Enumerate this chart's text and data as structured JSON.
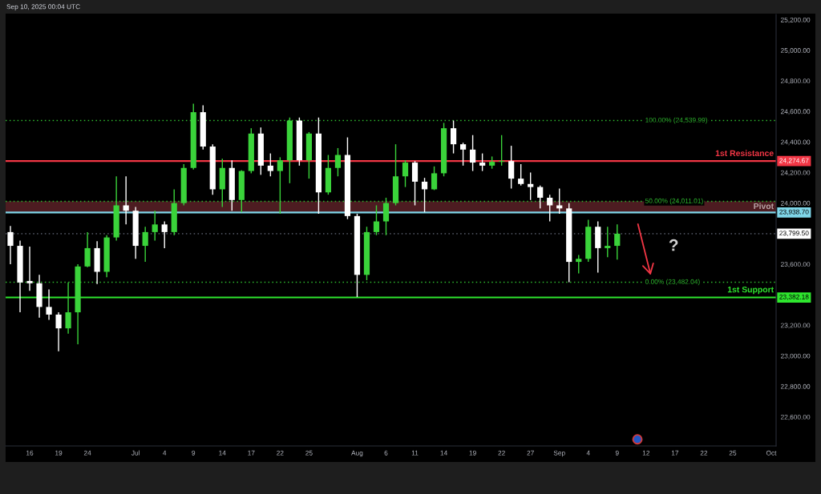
{
  "chart_data": {
    "type": "candlestick",
    "title": "Sep 10, 2025 00:04 UTC",
    "categories": [
      null,
      null,
      "16",
      null,
      null,
      "19",
      null,
      null,
      "24",
      null,
      null,
      null,
      null,
      "Jul",
      null,
      null,
      "4",
      null,
      null,
      "9",
      null,
      null,
      "14",
      null,
      null,
      "17",
      null,
      null,
      "22",
      null,
      null,
      "25",
      null,
      null,
      null,
      null,
      "Aug",
      null,
      null,
      "6",
      null,
      null,
      "11",
      null,
      null,
      "14",
      null,
      null,
      "19",
      null,
      null,
      "22",
      null,
      null,
      "27",
      null,
      null,
      "Sep",
      null,
      null,
      "4",
      null,
      null,
      "9",
      null,
      null,
      "12",
      null,
      null,
      "17",
      null,
      null,
      "22",
      null,
      null,
      "25",
      null,
      null,
      null,
      "Oct"
    ],
    "ohlc": [
      [
        23810,
        23850,
        23600,
        23720
      ],
      [
        23720,
        23755,
        23285,
        23480
      ],
      [
        23490,
        23715,
        23425,
        23475
      ],
      [
        23475,
        23530,
        23250,
        23320
      ],
      [
        23320,
        23435,
        23235,
        23270
      ],
      [
        23270,
        23285,
        23030,
        23180
      ],
      [
        23180,
        23480,
        23145,
        23285
      ],
      [
        23285,
        23600,
        23075,
        23585
      ],
      [
        23585,
        23810,
        23580,
        23705
      ],
      [
        23705,
        23750,
        23470,
        23550
      ],
      [
        23550,
        23790,
        23515,
        23775
      ],
      [
        23775,
        24175,
        23755,
        23985
      ],
      [
        23985,
        24175,
        23860,
        23950
      ],
      [
        23950,
        23975,
        23635,
        23720
      ],
      [
        23720,
        23845,
        23615,
        23810
      ],
      [
        23810,
        23950,
        23755,
        23860
      ],
      [
        23860,
        23880,
        23705,
        23810
      ],
      [
        23810,
        24090,
        23790,
        24000
      ],
      [
        24000,
        24255,
        23985,
        24230
      ],
      [
        24230,
        24650,
        24220,
        24595
      ],
      [
        24595,
        24640,
        24350,
        24370
      ],
      [
        24370,
        24385,
        24055,
        24090
      ],
      [
        24090,
        24290,
        23975,
        24230
      ],
      [
        24230,
        24280,
        23950,
        24020
      ],
      [
        24020,
        24215,
        23940,
        24210
      ],
      [
        24210,
        24490,
        24195,
        24455
      ],
      [
        24455,
        24495,
        24185,
        24245
      ],
      [
        24245,
        24325,
        24175,
        24210
      ],
      [
        24210,
        24300,
        23930,
        24280
      ],
      [
        24280,
        24560,
        24130,
        24540
      ],
      [
        24540,
        24560,
        24245,
        24280
      ],
      [
        24280,
        24465,
        24160,
        24455
      ],
      [
        24455,
        24560,
        23930,
        24070
      ],
      [
        24070,
        24315,
        24055,
        24230
      ],
      [
        24230,
        24360,
        24175,
        24315
      ],
      [
        24315,
        24430,
        23895,
        23915
      ],
      [
        23915,
        23930,
        23385,
        23530
      ],
      [
        23530,
        23845,
        23495,
        23810
      ],
      [
        23810,
        23985,
        23790,
        23880
      ],
      [
        23880,
        24035,
        23790,
        24000
      ],
      [
        24000,
        24385,
        23985,
        24175
      ],
      [
        24175,
        24280,
        24105,
        24265
      ],
      [
        24265,
        24275,
        23985,
        24140
      ],
      [
        24140,
        24165,
        23940,
        24090
      ],
      [
        24090,
        24240,
        24085,
        24195
      ],
      [
        24195,
        24525,
        24175,
        24490
      ],
      [
        24490,
        24540,
        24325,
        24385
      ],
      [
        24385,
        24395,
        24245,
        24350
      ],
      [
        24350,
        24445,
        24210,
        24265
      ],
      [
        24265,
        24325,
        24210,
        24245
      ],
      [
        24245,
        24305,
        24225,
        24270
      ],
      [
        24270,
        24445,
        24245,
        24275
      ],
      [
        24275,
        24375,
        24095,
        24160
      ],
      [
        24160,
        24255,
        24115,
        24125
      ],
      [
        24125,
        24200,
        24020,
        24105
      ],
      [
        24105,
        24115,
        23965,
        24035
      ],
      [
        24035,
        24055,
        23880,
        23985
      ],
      [
        23985,
        24095,
        23930,
        23965
      ],
      [
        23965,
        24000,
        23482,
        23615
      ],
      [
        23615,
        23660,
        23540,
        23635
      ],
      [
        23635,
        23890,
        23615,
        23845
      ],
      [
        23845,
        23880,
        23545,
        23705
      ],
      [
        23705,
        23845,
        23645,
        23720
      ],
      [
        23720,
        23860,
        23630,
        23799.5
      ],
      null,
      null,
      null,
      null,
      null,
      null,
      null,
      null,
      null,
      null,
      null,
      null,
      null,
      null,
      null,
      null
    ],
    "colors": [
      "#ffffff",
      "#ffffff",
      "#ffffff",
      "#ffffff",
      "#ffffff",
      "#ffffff",
      "#3ad33a",
      "#3ad33a",
      "#3ad33a",
      "#ffffff",
      "#3ad33a",
      "#3ad33a",
      "#ffffff",
      "#ffffff",
      "#3ad33a",
      "#3ad33a",
      "#ffffff",
      "#3ad33a",
      "#3ad33a",
      "#3ad33a",
      "#ffffff",
      "#ffffff",
      "#3ad33a",
      "#ffffff",
      "#3ad33a",
      "#3ad33a",
      "#ffffff",
      "#ffffff",
      "#3ad33a",
      "#3ad33a",
      "#ffffff",
      "#3ad33a",
      "#ffffff",
      "#3ad33a",
      "#3ad33a",
      "#ffffff",
      "#ffffff",
      "#3ad33a",
      "#3ad33a",
      "#3ad33a",
      "#3ad33a",
      "#3ad33a",
      "#ffffff",
      "#ffffff",
      "#3ad33a",
      "#3ad33a",
      "#ffffff",
      "#ffffff",
      "#ffffff",
      "#ffffff",
      "#3ad33a",
      "#3ad33a",
      "#ffffff",
      "#ffffff",
      "#ffffff",
      "#ffffff",
      "#ffffff",
      "#ffffff",
      "#ffffff",
      "#3ad33a",
      "#3ad33a",
      "#ffffff",
      "#3ad33a",
      "#3ad33a",
      null,
      null,
      null,
      null,
      null,
      null,
      null,
      null,
      null,
      null,
      null,
      null,
      null,
      null,
      null,
      null
    ],
    "ylim": [
      22410,
      25235
    ],
    "yticks": [
      {
        "value": 22600,
        "label": "22,600.00"
      },
      {
        "value": 22800,
        "label": "22,800.00"
      },
      {
        "value": 23000,
        "label": "23,000.00"
      },
      {
        "value": 23200,
        "label": "23,200.00"
      },
      {
        "value": 23600,
        "label": "23,600.00"
      },
      {
        "value": 24000,
        "label": "24,000.00"
      },
      {
        "value": 24200,
        "label": "24,200.00"
      },
      {
        "value": 24400,
        "label": "24,400.00"
      },
      {
        "value": 24600,
        "label": "24,600.00"
      },
      {
        "value": 24800,
        "label": "24,800.00"
      },
      {
        "value": 25000,
        "label": "25,000.00"
      },
      {
        "value": 25200,
        "label": "25,200.00"
      }
    ],
    "ref_lines": [
      {
        "axis": "y",
        "value": 24274.67,
        "label": "1st Resistance",
        "color": "#f23645",
        "line_style": "solid"
      },
      {
        "axis": "y",
        "value": 23938.7,
        "color": "#7fd6e8",
        "line_style": "solid"
      },
      {
        "axis": "y",
        "value": 23382.18,
        "label": "1st Support",
        "color": "#2ee62e",
        "line_style": "solid"
      },
      {
        "axis": "y",
        "value": 24539.99,
        "label": "100.00% (24,539.99)",
        "color": "#2eb82e",
        "line_style": "dotted"
      },
      {
        "axis": "y",
        "value": 24011.01,
        "label": "50.00% (24,011.01)",
        "color": "#2eb82e",
        "line_style": "dotted"
      },
      {
        "axis": "y",
        "value": 23482.04,
        "label": "0.00% (23,482.04)",
        "color": "#2eb82e",
        "line_style": "dotted"
      },
      {
        "axis": "y",
        "value": 23799.5,
        "color": "#4a4e59",
        "line_style": "dotted"
      }
    ],
    "bands": [
      {
        "axis": "y",
        "from": 23938.7,
        "to": 24011.01,
        "label": "Pivot",
        "color": "#4d1c21"
      }
    ],
    "annotations": [
      {
        "text": "24,274.67",
        "y": 24274.67
      },
      {
        "text": "23,938.70",
        "y": 23938.7
      },
      {
        "text": "23,799.50",
        "y": 23799.5
      },
      {
        "text": "23,382.18",
        "y": 23382.18
      },
      "?"
    ]
  }
}
